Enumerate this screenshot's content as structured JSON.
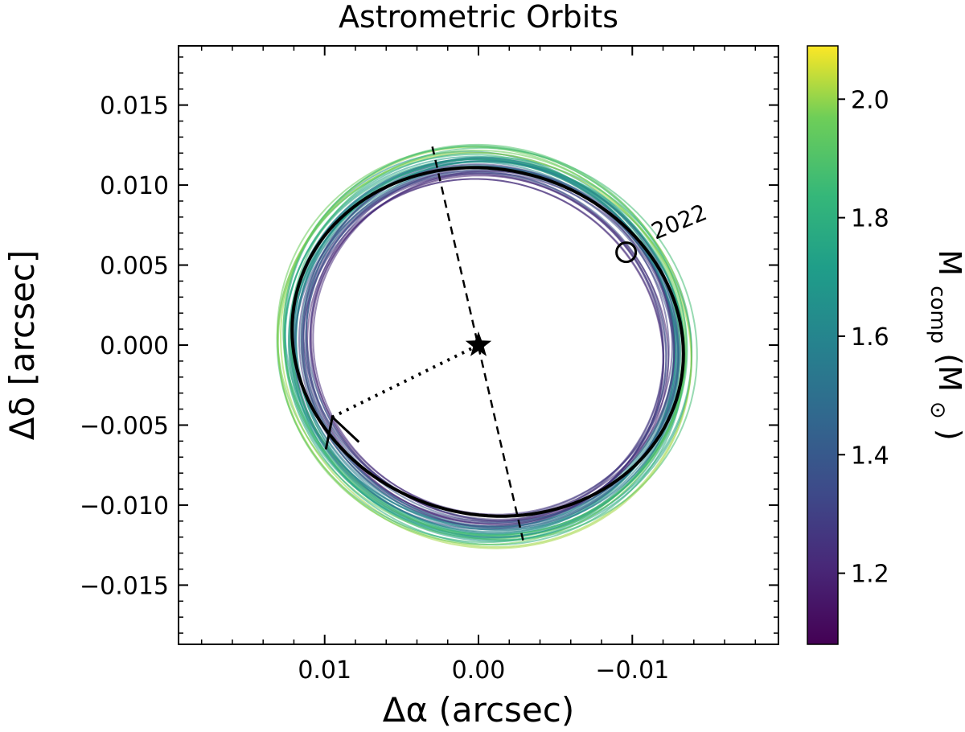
{
  "chart_data": {
    "type": "scatter",
    "title": "Astrometric Orbits",
    "xlabel": "Δα (arcsec)",
    "ylabel": "Δδ [arcsec]",
    "xlim": [
      0.0195,
      -0.0195
    ],
    "ylim": [
      -0.0187,
      0.0187
    ],
    "x_ticks": [
      {
        "value": 0.01,
        "label": "0.01"
      },
      {
        "value": 0.0,
        "label": "0.00"
      },
      {
        "value": -0.01,
        "label": "−0.01"
      }
    ],
    "y_ticks": [
      {
        "value": 0.015,
        "label": "0.015"
      },
      {
        "value": 0.01,
        "label": "0.010"
      },
      {
        "value": 0.005,
        "label": "0.005"
      },
      {
        "value": 0.0,
        "label": "0.000"
      },
      {
        "value": -0.005,
        "label": "−0.005"
      },
      {
        "value": -0.01,
        "label": "−0.010"
      },
      {
        "value": -0.015,
        "label": "−0.015"
      }
    ],
    "best_fit_orbit": {
      "center": [
        -0.0006,
        0.0002
      ],
      "semi_major": 0.0128,
      "semi_minor": 0.0108,
      "rotation_deg": 12,
      "color": "#000000"
    },
    "orbit_ensemble": {
      "count": 40,
      "mass_range": [
        1.18,
        2.05
      ],
      "center_range": [
        [
          0.0,
          -0.0005
        ],
        [
          -0.001,
          0.0004
        ]
      ],
      "semi_major_range": [
        0.0112,
        0.0138
      ],
      "semi_minor_range": [
        0.0102,
        0.0127
      ],
      "rotation_range_deg": [
        8,
        20
      ]
    },
    "star": {
      "x": 0.0,
      "y": 0.0,
      "marker": "star"
    },
    "line_of_nodes": {
      "from": [
        0.003,
        0.0124
      ],
      "to": [
        -0.0029,
        -0.0122
      ],
      "style": "dashed"
    },
    "periastron_line": {
      "from": [
        0.0,
        0.0
      ],
      "to": [
        0.0095,
        -0.0045
      ],
      "style": "dotted"
    },
    "direction_arrow": {
      "x": 0.0095,
      "y": -0.0045,
      "direction": "counter-clockwise"
    },
    "epoch_marker": {
      "x": -0.0096,
      "y": 0.0058,
      "label": "2022"
    },
    "colorbar": {
      "label_main": "M",
      "label_sub": "comp",
      "label_tail": "(M",
      "label_sun": "⊙",
      "label_close": ")",
      "range": [
        1.08,
        2.09
      ],
      "ticks": [
        {
          "value": 1.2,
          "label": "1.2"
        },
        {
          "value": 1.4,
          "label": "1.4"
        },
        {
          "value": 1.6,
          "label": "1.6"
        },
        {
          "value": 1.8,
          "label": "1.8"
        },
        {
          "value": 2.0,
          "label": "2.0"
        }
      ],
      "colormap": "viridis"
    },
    "grid": false,
    "legend": false
  }
}
